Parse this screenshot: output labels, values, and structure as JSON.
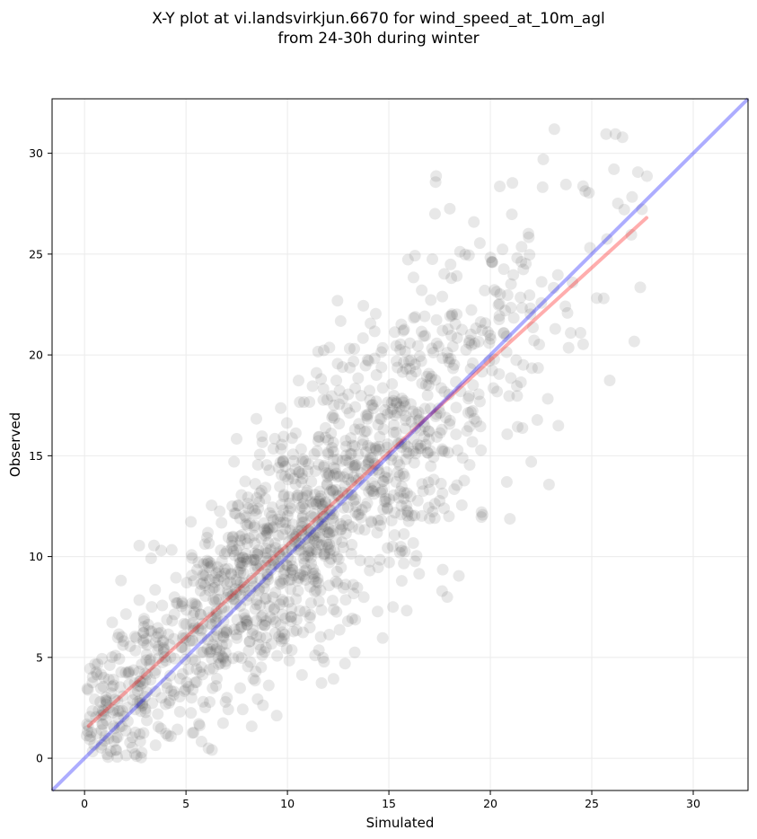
{
  "chart_data": {
    "type": "scatter",
    "title_lines": [
      "X-Y plot at vi.landsvirkjun.6670 for wind_speed_at_10m_agl",
      "from 24-30h during winter"
    ],
    "xlabel": "Simulated",
    "ylabel": "Observed",
    "xlim": [
      -1.6,
      32.7
    ],
    "ylim": [
      -1.6,
      32.7
    ],
    "xticks": [
      0,
      5,
      10,
      15,
      20,
      25,
      30
    ],
    "yticks": [
      0,
      5,
      10,
      15,
      20,
      25,
      30
    ],
    "grid": true,
    "point_color": "#404040",
    "point_alpha": 0.12,
    "identity_line": {
      "x": [
        -1.6,
        32.7
      ],
      "y": [
        -1.6,
        32.7
      ],
      "color": "#0000ff",
      "alpha": 0.32
    },
    "regression_line": {
      "x": [
        0.2,
        27.7
      ],
      "y": [
        1.6,
        26.8
      ],
      "color": "#ff0000",
      "alpha": 0.32
    },
    "point_sample_seed": 6670,
    "point_count": 1500,
    "point_model": {
      "x_mean": 11.0,
      "x_std": 6.2,
      "x_max": 27.8,
      "slope": 0.92,
      "intercept": 1.4,
      "noise_base": 1.8,
      "noise_scale": 0.12
    }
  }
}
